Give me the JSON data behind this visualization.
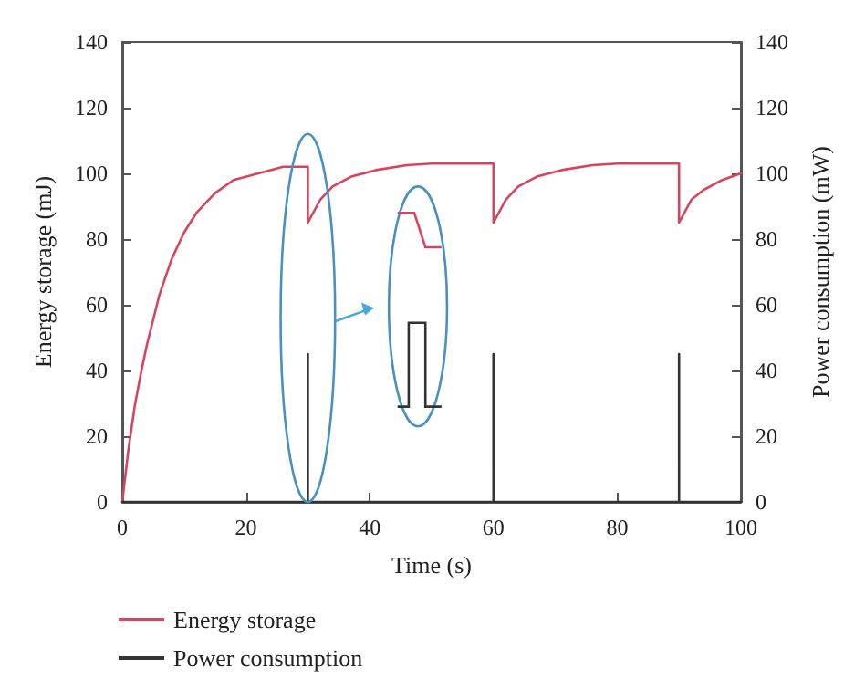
{
  "chart_data": {
    "type": "line",
    "xlabel": "Time (s)",
    "ylabel": "Energy storage (mJ)",
    "y2label": "Power consumption (mW)",
    "xlim": [
      0,
      100
    ],
    "xticks": [
      0,
      20,
      40,
      60,
      80,
      100
    ],
    "ylim": [
      0,
      140
    ],
    "yticks": [
      0,
      20,
      40,
      60,
      80,
      100,
      120,
      140
    ],
    "y2lim": [
      0,
      140
    ],
    "y2ticks": [
      0,
      20,
      40,
      60,
      80,
      100,
      120,
      140
    ],
    "grid": false,
    "legend": "bottom left",
    "marker": "none",
    "line_style": "solid",
    "series": [
      {
        "name": "Energy storage",
        "color": "#d6455f",
        "x": [
          0,
          1,
          2,
          3,
          4,
          6,
          8,
          10,
          12,
          15,
          18,
          22,
          26,
          30,
          30,
          32,
          34,
          37,
          41,
          46,
          50,
          60,
          60,
          62,
          64,
          67,
          71,
          76,
          80,
          90,
          90,
          92,
          94,
          97,
          100
        ],
        "values": [
          0,
          16,
          29,
          39,
          48,
          63,
          74,
          82,
          88,
          94,
          98,
          100,
          102,
          102,
          85,
          92,
          96,
          99,
          101,
          102.5,
          103,
          103,
          85,
          92,
          96,
          99,
          101,
          102.5,
          103,
          103,
          85,
          92,
          95,
          98,
          100
        ]
      },
      {
        "name": "Power consumption",
        "color": "#333333",
        "axis": "y2",
        "x": [
          0,
          30,
          30,
          30,
          60,
          60,
          60,
          90,
          90,
          90,
          100
        ],
        "values": [
          0,
          0,
          45,
          0,
          0,
          45,
          0,
          0,
          45,
          0,
          0
        ]
      }
    ]
  }
}
